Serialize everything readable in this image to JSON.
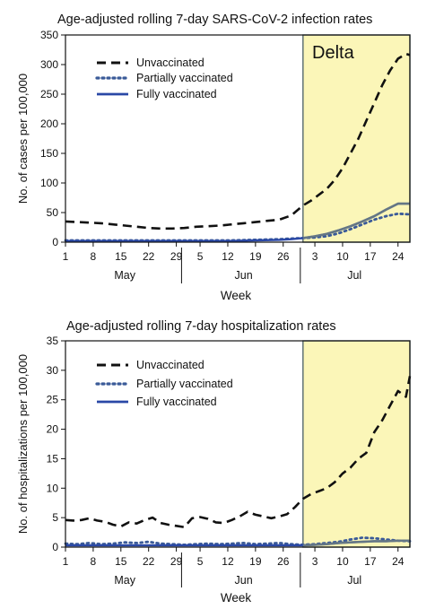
{
  "colors": {
    "unvaccinated": "#111111",
    "partially_vaccinated": "#3a5a98",
    "fully_vaccinated": "#2a48a6",
    "delta_shade": "#fbf6b8",
    "delta_line_overlay": "#6f7f7f"
  },
  "chart_data": [
    {
      "type": "line",
      "title": "Age-adjusted rolling 7-day SARS-CoV-2 infection rates",
      "ylabel": "No. of cases per 100,000",
      "xlabel": "Week",
      "ylim": [
        0,
        350
      ],
      "yticks": [
        0,
        50,
        100,
        150,
        200,
        250,
        300,
        350
      ],
      "xlim": [
        0,
        87
      ],
      "xticks": [
        {
          "x": 0,
          "label": "1"
        },
        {
          "x": 7,
          "label": "8"
        },
        {
          "x": 14,
          "label": "15"
        },
        {
          "x": 21,
          "label": "22"
        },
        {
          "x": 28,
          "label": "29"
        },
        {
          "x": 34,
          "label": "5"
        },
        {
          "x": 41,
          "label": "12"
        },
        {
          "x": 48,
          "label": "19"
        },
        {
          "x": 55,
          "label": "26"
        },
        {
          "x": 63,
          "label": "3"
        },
        {
          "x": 70,
          "label": "10"
        },
        {
          "x": 77,
          "label": "17"
        },
        {
          "x": 84,
          "label": "24"
        }
      ],
      "months": [
        {
          "label": "May",
          "center": 15,
          "start": 0,
          "end": 30
        },
        {
          "label": "Jun",
          "center": 45,
          "start": 30,
          "end": 60
        },
        {
          "label": "Jul",
          "center": 73,
          "start": 60,
          "end": 87
        }
      ],
      "delta_region": {
        "label": "Delta",
        "x_start": 60,
        "x_end": 87
      },
      "legend_placement": "top-left",
      "series": [
        {
          "name": "Unvaccinated",
          "style": "dashed",
          "x": [
            0,
            3,
            6,
            9,
            12,
            15,
            18,
            21,
            24,
            27,
            30,
            33,
            36,
            39,
            42,
            45,
            48,
            51,
            54,
            57,
            60,
            62,
            64,
            66,
            68,
            70,
            72,
            74,
            76,
            78,
            80,
            82,
            84,
            86,
            87
          ],
          "values": [
            35,
            34,
            33,
            32,
            30,
            28,
            26,
            24,
            23,
            23,
            24,
            26,
            27,
            28,
            30,
            32,
            34,
            36,
            38,
            45,
            62,
            70,
            80,
            90,
            105,
            125,
            150,
            175,
            205,
            235,
            265,
            290,
            310,
            318,
            316
          ]
        },
        {
          "name": "Partially vaccinated",
          "style": "dotted",
          "x": [
            0,
            6,
            12,
            18,
            24,
            30,
            36,
            42,
            48,
            54,
            57,
            60,
            63,
            66,
            69,
            72,
            75,
            78,
            81,
            84,
            87
          ],
          "values": [
            3,
            3,
            3,
            3,
            3,
            3,
            3,
            3,
            4,
            5,
            6,
            7,
            8,
            10,
            15,
            22,
            30,
            38,
            44,
            48,
            47
          ]
        },
        {
          "name": "Fully vaccinated",
          "style": "solid",
          "x": [
            0,
            6,
            12,
            18,
            24,
            30,
            36,
            42,
            48,
            54,
            57,
            60,
            63,
            66,
            69,
            72,
            75,
            78,
            81,
            84,
            87
          ],
          "values": [
            2,
            2,
            2,
            2,
            2,
            2,
            2,
            2,
            3,
            4,
            5,
            7,
            10,
            14,
            20,
            27,
            35,
            44,
            55,
            65,
            65
          ]
        }
      ]
    },
    {
      "type": "line",
      "title": "Age-adjusted rolling 7-day hospitalization rates",
      "ylabel": "No. of hospitalizations per 100,000",
      "xlabel": "Week",
      "ylim": [
        0,
        35
      ],
      "yticks": [
        0,
        5,
        10,
        15,
        20,
        25,
        30,
        35
      ],
      "xlim": [
        0,
        87
      ],
      "xticks": [
        {
          "x": 0,
          "label": "1"
        },
        {
          "x": 7,
          "label": "8"
        },
        {
          "x": 14,
          "label": "15"
        },
        {
          "x": 21,
          "label": "22"
        },
        {
          "x": 28,
          "label": "29"
        },
        {
          "x": 34,
          "label": "5"
        },
        {
          "x": 41,
          "label": "12"
        },
        {
          "x": 48,
          "label": "19"
        },
        {
          "x": 55,
          "label": "26"
        },
        {
          "x": 63,
          "label": "3"
        },
        {
          "x": 70,
          "label": "10"
        },
        {
          "x": 77,
          "label": "17"
        },
        {
          "x": 84,
          "label": "24"
        }
      ],
      "months": [
        {
          "label": "May",
          "center": 15,
          "start": 0,
          "end": 30
        },
        {
          "label": "Jun",
          "center": 45,
          "start": 30,
          "end": 60
        },
        {
          "label": "Jul",
          "center": 73,
          "start": 60,
          "end": 87
        }
      ],
      "delta_region": {
        "label": "",
        "x_start": 60,
        "x_end": 87
      },
      "legend_placement": "top-left",
      "series": [
        {
          "name": "Unvaccinated",
          "style": "dashed",
          "x": [
            0,
            2,
            4,
            6,
            8,
            10,
            12,
            14,
            16,
            18,
            20,
            22,
            24,
            26,
            28,
            30,
            32,
            34,
            36,
            38,
            40,
            42,
            44,
            46,
            48,
            50,
            52,
            54,
            56,
            58,
            60,
            62,
            64,
            66,
            68,
            70,
            72,
            74,
            76,
            78,
            80,
            82,
            84,
            86,
            87
          ],
          "values": [
            4.6,
            4.5,
            4.6,
            4.9,
            4.5,
            4.3,
            3.8,
            3.5,
            4.2,
            4.0,
            4.6,
            5.0,
            4.1,
            3.8,
            3.6,
            3.4,
            4.9,
            5.1,
            4.8,
            4.2,
            4.1,
            4.6,
            5.2,
            6.0,
            5.5,
            5.2,
            4.9,
            5.2,
            5.6,
            6.8,
            8.2,
            9.0,
            9.5,
            10.0,
            11.0,
            12.5,
            13.5,
            15.0,
            16.0,
            19.5,
            21.5,
            24.0,
            26.5,
            25.5,
            29.0
          ]
        },
        {
          "name": "Partially vaccinated",
          "style": "dotted",
          "x": [
            0,
            3,
            6,
            9,
            12,
            15,
            18,
            21,
            24,
            27,
            30,
            33,
            36,
            39,
            42,
            45,
            48,
            51,
            54,
            57,
            60,
            63,
            66,
            69,
            72,
            75,
            78,
            81,
            84,
            87
          ],
          "values": [
            0.6,
            0.5,
            0.7,
            0.5,
            0.6,
            0.8,
            0.7,
            0.9,
            0.6,
            0.5,
            0.4,
            0.5,
            0.6,
            0.5,
            0.6,
            0.7,
            0.5,
            0.6,
            0.7,
            0.5,
            0.4,
            0.5,
            0.7,
            0.9,
            1.3,
            1.6,
            1.5,
            1.3,
            1.1,
            1.0
          ]
        },
        {
          "name": "Fully vaccinated",
          "style": "solid",
          "x": [
            0,
            6,
            12,
            18,
            24,
            30,
            36,
            42,
            48,
            54,
            60,
            63,
            66,
            69,
            72,
            75,
            78,
            81,
            84,
            87
          ],
          "values": [
            0.3,
            0.3,
            0.3,
            0.3,
            0.3,
            0.3,
            0.3,
            0.3,
            0.3,
            0.3,
            0.3,
            0.4,
            0.5,
            0.7,
            0.8,
            0.9,
            1.0,
            1.0,
            1.1,
            1.1
          ]
        }
      ]
    }
  ]
}
